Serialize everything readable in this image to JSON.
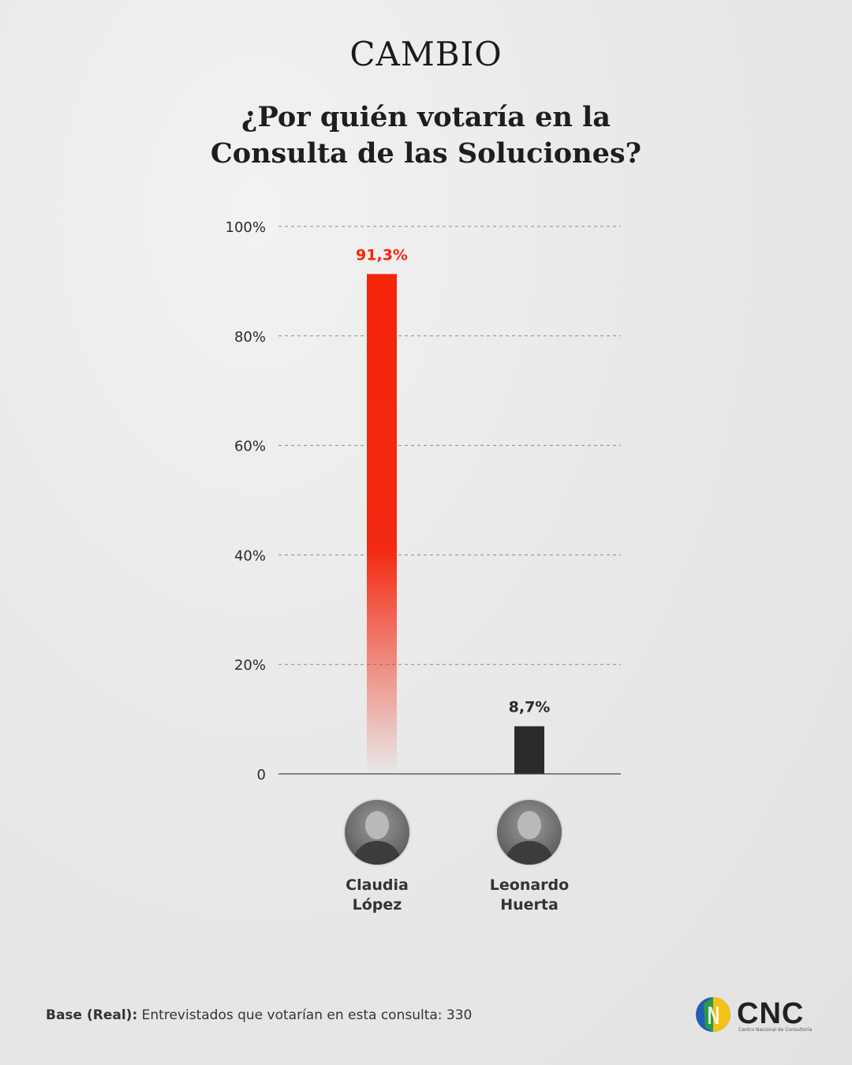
{
  "brand": "CAMBIO",
  "title_line1": "¿Por quién votaría en la",
  "title_line2": "Consulta de las Soluciones?",
  "chart_data": {
    "type": "bar",
    "title": "¿Por quién votaría en la Consulta de las Soluciones?",
    "categories": [
      "Claudia López",
      "Leonardo Huerta"
    ],
    "values": [
      91.3,
      8.7
    ],
    "value_labels": [
      "91,3%",
      "8,7%"
    ],
    "y_ticks": [
      "0",
      "20%",
      "40%",
      "60%",
      "80%",
      "100%"
    ],
    "ylim": [
      0,
      100
    ],
    "grid": true,
    "colors": [
      "#f5250a",
      "#2a2a2a"
    ],
    "label_colors": [
      "#f5250a",
      "#2a2a2a"
    ]
  },
  "candidates": [
    {
      "first": "Claudia",
      "last": "López"
    },
    {
      "first": "Leonardo",
      "last": "Huerta"
    }
  ],
  "footer": {
    "base_label": "Base (Real):",
    "base_text": " Entrevistados que votarían en esta consulta: 330"
  },
  "logo": {
    "name": "CNC",
    "subtitle": "Centro Nacional de Consultoría"
  }
}
